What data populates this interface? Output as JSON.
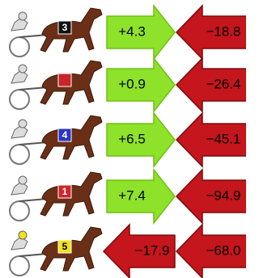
{
  "rows": [
    {
      "cloth": "3",
      "cloth_color": "#111111",
      "values": [
        "+4.3",
        "−18.8"
      ]
    },
    {
      "cloth": null,
      "cloth_color": "#c8242a",
      "values": [
        "+0.9",
        "−26.4"
      ]
    },
    {
      "cloth": "4",
      "cloth_color": "#2a35c0",
      "values": [
        "+6.5",
        "−45.1"
      ]
    },
    {
      "cloth": "1",
      "cloth_color": "#d0242a",
      "values": [
        "+7.4",
        "−94.9"
      ]
    },
    {
      "cloth": "5",
      "cloth_color": "#f2e21a",
      "values": [
        "−17.9",
        "−68.0"
      ]
    }
  ]
}
